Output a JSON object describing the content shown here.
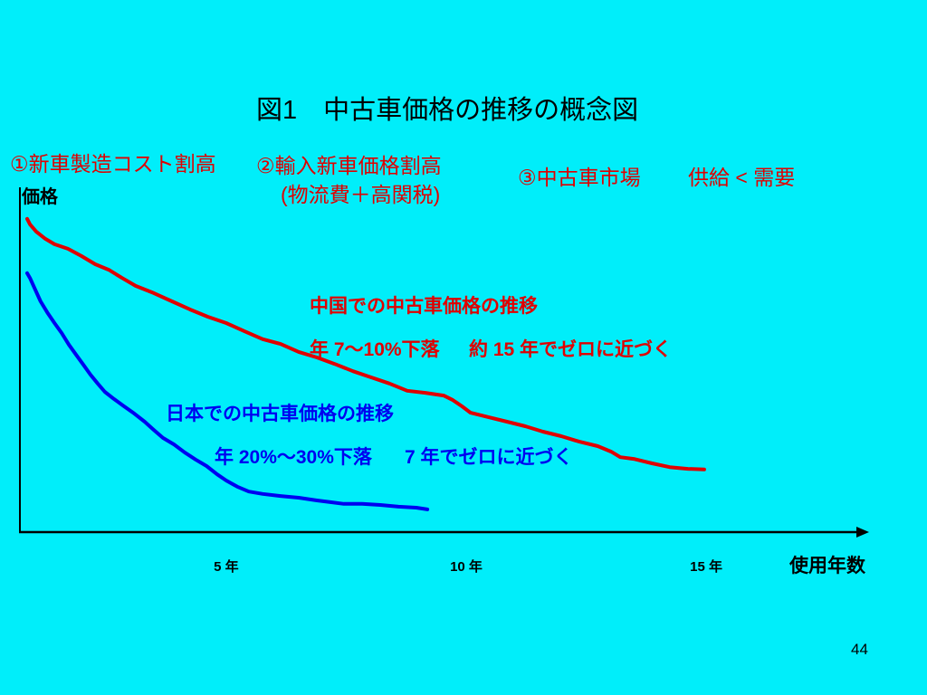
{
  "slide": {
    "background": "#00EEFA",
    "factor1": "①新車製造コスト割高",
    "factor2": "②輸入新車価格割高",
    "factor2_detail": "(物流費＋高関税)",
    "factor3": "③中古車市場",
    "factor3_detail": "供給 < 需要",
    "factor_color": "#E00000",
    "page_number": "44"
  },
  "chart_data": {
    "type": "line",
    "title": "図1　中古車価格の推移の概念図",
    "xlabel": "使用年数",
    "ylabel": "価格",
    "xlim": [
      0.7,
      18.3
    ],
    "ylim": [
      0,
      100
    ],
    "xticks": [
      {
        "value": 5,
        "label": "5 年"
      },
      {
        "value": 10,
        "label": "10 年"
      },
      {
        "value": 15,
        "label": "15 年"
      }
    ],
    "grid": false,
    "legend": "none",
    "series": [
      {
        "name": "中国での中古車価格の推移",
        "color": "#E00000",
        "annotation": [
          "年 7〜10%下落",
          "約 15 年でゼロに近づく"
        ],
        "points": [
          [
            0.85,
            91.1
          ],
          [
            0.91,
            89.5
          ],
          [
            1.04,
            87.4
          ],
          [
            1.23,
            85.3
          ],
          [
            1.42,
            83.7
          ],
          [
            1.7,
            82.4
          ],
          [
            1.98,
            80.3
          ],
          [
            2.27,
            77.9
          ],
          [
            2.55,
            76.3
          ],
          [
            2.83,
            73.9
          ],
          [
            3.11,
            71.6
          ],
          [
            3.49,
            69.5
          ],
          [
            3.87,
            67.1
          ],
          [
            4.25,
            64.7
          ],
          [
            4.62,
            62.6
          ],
          [
            5.0,
            60.8
          ],
          [
            5.38,
            58.4
          ],
          [
            5.76,
            56.1
          ],
          [
            6.13,
            54.7
          ],
          [
            6.51,
            52.4
          ],
          [
            6.89,
            50.8
          ],
          [
            7.26,
            48.9
          ],
          [
            7.64,
            46.8
          ],
          [
            8.02,
            45.0
          ],
          [
            8.4,
            43.2
          ],
          [
            8.77,
            41.1
          ],
          [
            9.15,
            40.5
          ],
          [
            9.53,
            39.7
          ],
          [
            9.72,
            38.4
          ],
          [
            9.91,
            36.6
          ],
          [
            10.09,
            34.7
          ],
          [
            10.47,
            33.4
          ],
          [
            10.85,
            32.1
          ],
          [
            11.23,
            30.8
          ],
          [
            11.6,
            29.2
          ],
          [
            11.98,
            27.9
          ],
          [
            12.36,
            26.3
          ],
          [
            12.74,
            25.0
          ],
          [
            13.02,
            23.4
          ],
          [
            13.21,
            21.8
          ],
          [
            13.49,
            21.3
          ],
          [
            13.87,
            20.0
          ],
          [
            14.24,
            18.9
          ],
          [
            14.62,
            18.4
          ],
          [
            14.96,
            18.2
          ]
        ]
      },
      {
        "name": "日本での中古車価格の推移",
        "color": "#0000F0",
        "annotation": [
          "年 20%〜30%下落",
          "7 年でゼロに近づく"
        ],
        "points": [
          [
            0.85,
            75.3
          ],
          [
            0.91,
            73.9
          ],
          [
            1.0,
            71.1
          ],
          [
            1.13,
            67.1
          ],
          [
            1.27,
            63.9
          ],
          [
            1.42,
            60.8
          ],
          [
            1.57,
            57.9
          ],
          [
            1.72,
            54.5
          ],
          [
            1.87,
            51.6
          ],
          [
            2.02,
            48.7
          ],
          [
            2.17,
            45.8
          ],
          [
            2.32,
            43.2
          ],
          [
            2.47,
            40.8
          ],
          [
            2.66,
            38.7
          ],
          [
            2.85,
            36.8
          ],
          [
            3.08,
            34.5
          ],
          [
            3.3,
            32.1
          ],
          [
            3.49,
            29.7
          ],
          [
            3.68,
            27.4
          ],
          [
            3.91,
            25.5
          ],
          [
            4.13,
            23.2
          ],
          [
            4.36,
            21.1
          ],
          [
            4.59,
            19.2
          ],
          [
            4.81,
            16.8
          ],
          [
            5.0,
            15.0
          ],
          [
            5.23,
            13.2
          ],
          [
            5.47,
            11.8
          ],
          [
            5.76,
            11.1
          ],
          [
            6.13,
            10.5
          ],
          [
            6.51,
            10.0
          ],
          [
            6.89,
            9.2
          ],
          [
            7.17,
            8.7
          ],
          [
            7.45,
            8.2
          ],
          [
            7.83,
            8.2
          ],
          [
            8.21,
            7.9
          ],
          [
            8.59,
            7.4
          ],
          [
            8.96,
            7.1
          ],
          [
            9.19,
            6.6
          ]
        ]
      }
    ]
  }
}
